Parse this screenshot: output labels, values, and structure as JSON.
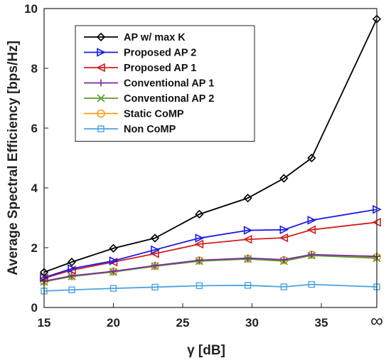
{
  "chart_data": {
    "type": "line",
    "xlabel": "γ  [dB]",
    "ylabel": "Average Spectral Efficiency [bps/Hz]",
    "x_tick_labels": [
      "15",
      "20",
      "25",
      "30",
      "35",
      "∞"
    ],
    "x_tick_values": [
      15,
      20,
      25,
      30,
      35,
      39
    ],
    "x": [
      15,
      17,
      20,
      23,
      26.2,
      29.7,
      32.3,
      34.3,
      39
    ],
    "xlim": [
      15,
      39
    ],
    "ylim": [
      0,
      10
    ],
    "y_ticks": [
      0,
      2,
      4,
      6,
      8,
      10
    ],
    "grid": false,
    "legend_position": "top-left",
    "series": [
      {
        "name": "AP w/ max K",
        "color": "#000000",
        "marker": "diamond",
        "values": [
          1.18,
          1.52,
          1.98,
          2.32,
          3.12,
          3.66,
          4.32,
          5.0,
          9.65
        ]
      },
      {
        "name": "Proposed AP 2",
        "color": "#1a1ae6",
        "marker": "triangle-right",
        "values": [
          1.0,
          1.3,
          1.56,
          1.93,
          2.32,
          2.58,
          2.6,
          2.92,
          3.28
        ]
      },
      {
        "name": "Proposed AP 1",
        "color": "#d21e1e",
        "marker": "triangle-left",
        "values": [
          0.98,
          1.25,
          1.52,
          1.8,
          2.12,
          2.28,
          2.33,
          2.6,
          2.85
        ]
      },
      {
        "name": "Conventional AP 1",
        "color": "#7b2d9e",
        "marker": "plus",
        "values": [
          0.88,
          1.06,
          1.21,
          1.4,
          1.58,
          1.65,
          1.6,
          1.77,
          1.71
        ]
      },
      {
        "name": "Conventional AP 2",
        "color": "#5aa02c",
        "marker": "x",
        "values": [
          0.86,
          1.04,
          1.19,
          1.38,
          1.55,
          1.62,
          1.55,
          1.74,
          1.65
        ]
      },
      {
        "name": "Static CoMP",
        "color": "#f0a018",
        "marker": "circle",
        "values": [
          0.87,
          1.05,
          1.2,
          1.39,
          1.57,
          1.63,
          1.58,
          1.76,
          1.68
        ]
      },
      {
        "name": "Non CoMP",
        "color": "#4aa3e0",
        "marker": "square",
        "values": [
          0.55,
          0.59,
          0.64,
          0.68,
          0.73,
          0.74,
          0.69,
          0.77,
          0.69
        ]
      }
    ]
  }
}
